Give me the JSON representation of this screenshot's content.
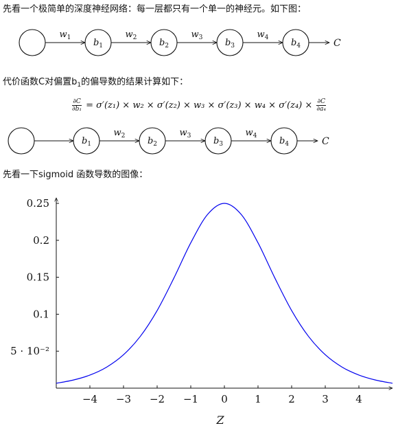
{
  "paragraphs": {
    "p1": "先看一个极简单的深度神经网络：每一层都只有一个单一的神经元。如下图：",
    "p2_pre": "代价函数C对偏置b",
    "p2_sub": "1",
    "p2_post": "的偏导数的结果计算如下：",
    "p3": "先看一下sigmoid 函数导数的图像："
  },
  "diagram1": {
    "weights": [
      {
        "base": "w",
        "sub": "1"
      },
      {
        "base": "w",
        "sub": "2"
      },
      {
        "base": "w",
        "sub": "3"
      },
      {
        "base": "w",
        "sub": "4"
      }
    ],
    "biases": [
      {
        "base": "b",
        "sub": "1"
      },
      {
        "base": "b",
        "sub": "2"
      },
      {
        "base": "b",
        "sub": "3"
      },
      {
        "base": "b",
        "sub": "4"
      }
    ],
    "output": "C"
  },
  "equation": {
    "lhs_num": "∂C",
    "lhs_den": "∂b₁",
    "rhs": "= σ′(z₁) × w₂ × σ′(z₂) × w₃ × σ′(z₃) × w₄ × σ′(z₄) ×",
    "rhs_num": "∂C",
    "rhs_den": "∂a₄"
  },
  "diagram2": {
    "weights": [
      {
        "base": "w",
        "sub": "2"
      },
      {
        "base": "w",
        "sub": "3"
      },
      {
        "base": "w",
        "sub": "4"
      }
    ],
    "biases": [
      {
        "base": "b",
        "sub": "1"
      },
      {
        "base": "b",
        "sub": "2"
      },
      {
        "base": "b",
        "sub": "3"
      },
      {
        "base": "b",
        "sub": "4"
      }
    ],
    "output": "C"
  },
  "chart_data": {
    "type": "line",
    "function": "sigmoid'(z) = σ(z)(1−σ(z))",
    "x": [
      -5,
      -4.5,
      -4,
      -3.5,
      -3,
      -2.5,
      -2,
      -1.5,
      -1,
      -0.5,
      0,
      0.5,
      1,
      1.5,
      2,
      2.5,
      3,
      3.5,
      4,
      4.5,
      5
    ],
    "y": [
      0.0066,
      0.0109,
      0.0177,
      0.0285,
      0.0452,
      0.0701,
      0.105,
      0.1491,
      0.1966,
      0.235,
      0.25,
      0.235,
      0.1966,
      0.1491,
      0.105,
      0.0701,
      0.0452,
      0.0285,
      0.0177,
      0.0109,
      0.0066
    ],
    "xlabel": "Z",
    "xlim": [
      -5,
      5
    ],
    "ylim": [
      0,
      0.25
    ],
    "xticks": [
      -4,
      -3,
      -2,
      -1,
      0,
      1,
      2,
      3,
      4
    ],
    "xtick_labels": [
      "−4",
      "−3",
      "−2",
      "−1",
      "0",
      "1",
      "2",
      "3",
      "4"
    ],
    "yticks": [
      0.05,
      0.1,
      0.15,
      0.2,
      0.25
    ],
    "ytick_labels": [
      "5 · 10⁻²",
      "0.1",
      "0.15",
      "0.2",
      "0.25"
    ],
    "line_color": "#0000ee",
    "grid": false
  }
}
